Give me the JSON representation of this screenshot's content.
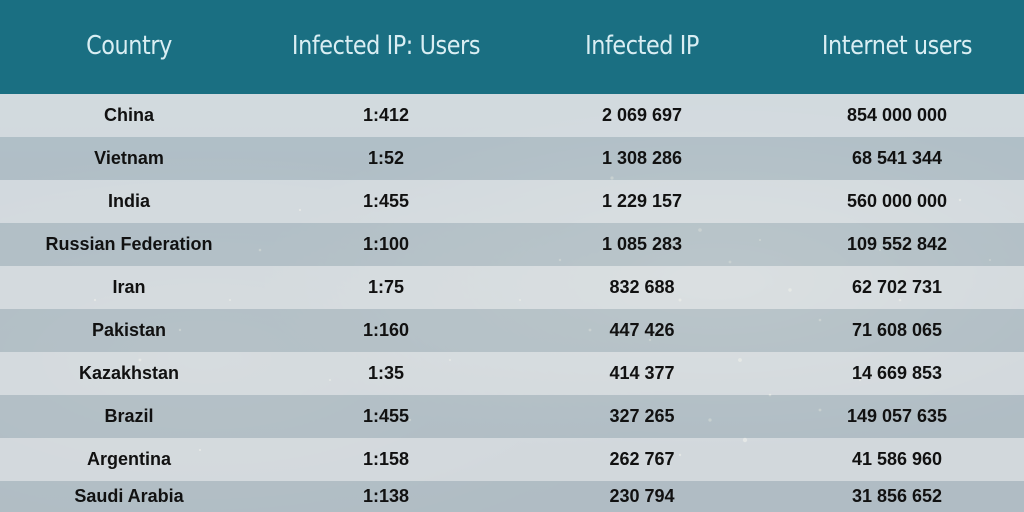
{
  "colors": {
    "header": "#1a6f82",
    "header_text": "#d9eef3",
    "row_light": "#e8ecef",
    "row_dark": "#c7d3da",
    "cell_text": "#111111"
  },
  "chart_data": {
    "type": "table",
    "columns": [
      "Country",
      "Infected IP: Users",
      "Infected IP",
      "Internet users"
    ],
    "rows": [
      [
        "China",
        "1:412",
        "2 069 697",
        "854 000 000"
      ],
      [
        "Vietnam",
        "1:52",
        "1 308 286",
        "68 541 344"
      ],
      [
        "India",
        "1:455",
        "1 229 157",
        "560 000 000"
      ],
      [
        "Russian Federation",
        "1:100",
        "1 085 283",
        "109 552 842"
      ],
      [
        "Iran",
        "1:75",
        "832 688",
        "62 702 731"
      ],
      [
        "Pakistan",
        "1:160",
        "447 426",
        "71 608 065"
      ],
      [
        "Kazakhstan",
        "1:35",
        "414 377",
        "14 669 853"
      ],
      [
        "Brazil",
        "1:455",
        "327 265",
        "149 057 635"
      ],
      [
        "Argentina",
        "1:158",
        "262 767",
        "41 586 960"
      ],
      [
        "Saudi Arabia",
        "1:138",
        "230 794",
        "31 856 652"
      ]
    ]
  }
}
